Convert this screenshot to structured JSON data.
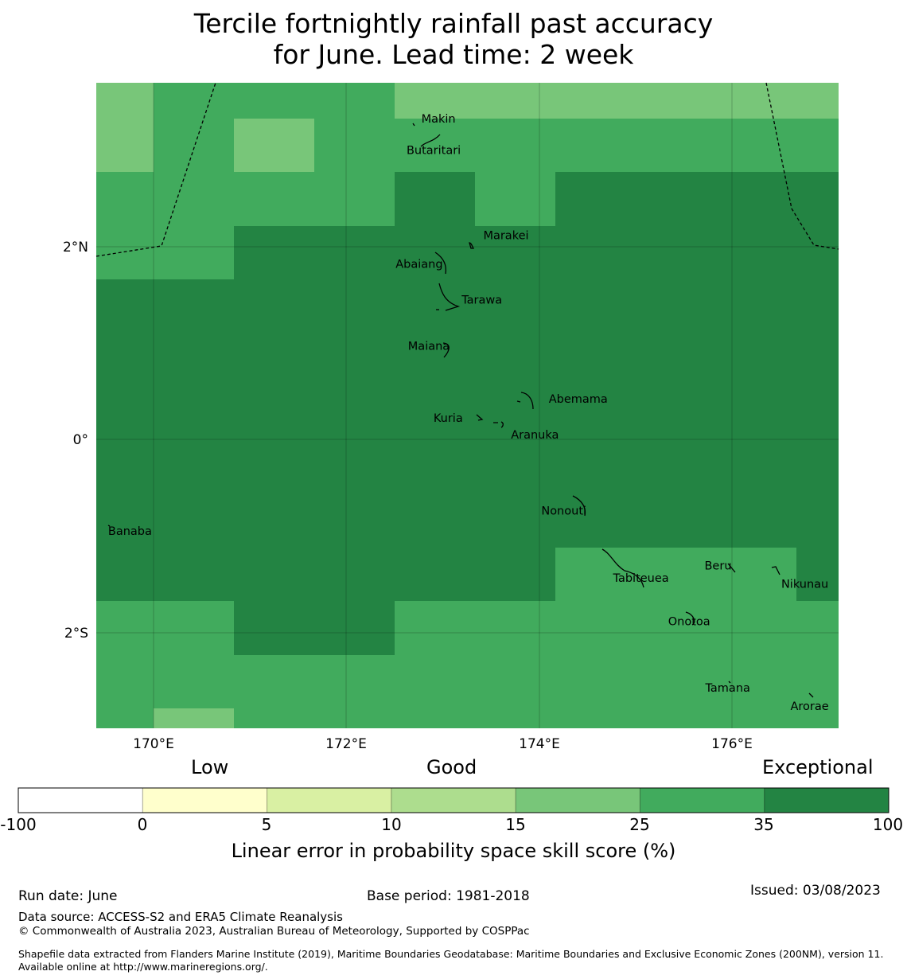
{
  "title": {
    "line1": "Tercile fortnightly rainfall past accuracy",
    "line2": "for June. Lead time: 2 week"
  },
  "map": {
    "lon_range": [
      169.4,
      177.1
    ],
    "lat_range": [
      -3.0,
      3.7
    ],
    "lon_ticks": [
      "170°E",
      "172°E",
      "174°E",
      "176°E"
    ],
    "lat_ticks": [
      "2°N",
      "0°",
      "2°S"
    ],
    "places": [
      {
        "name": "Makin",
        "lon": 172.95,
        "lat": 3.33
      },
      {
        "name": "Butaritari",
        "lon": 172.9,
        "lat": 3.0
      },
      {
        "name": "Marakei",
        "lon": 173.65,
        "lat": 2.12
      },
      {
        "name": "Abaiang",
        "lon": 172.75,
        "lat": 1.82
      },
      {
        "name": "Tarawa",
        "lon": 173.4,
        "lat": 1.45
      },
      {
        "name": "Maiana",
        "lon": 172.85,
        "lat": 0.97
      },
      {
        "name": "Abemama",
        "lon": 174.4,
        "lat": 0.42
      },
      {
        "name": "Kuria",
        "lon": 173.05,
        "lat": 0.22
      },
      {
        "name": "Aranuka",
        "lon": 173.95,
        "lat": 0.05
      },
      {
        "name": "Banaba",
        "lon": 169.75,
        "lat": -0.95
      },
      {
        "name": "Nonouti",
        "lon": 174.25,
        "lat": -0.74
      },
      {
        "name": "Tabiteuea",
        "lon": 175.05,
        "lat": -1.44
      },
      {
        "name": "Beru",
        "lon": 175.85,
        "lat": -1.31
      },
      {
        "name": "Nikunau",
        "lon": 176.75,
        "lat": -1.5
      },
      {
        "name": "Onotoa",
        "lon": 175.55,
        "lat": -1.89
      },
      {
        "name": "Tamana",
        "lon": 175.95,
        "lat": -2.58
      },
      {
        "name": "Arorae",
        "lon": 176.8,
        "lat": -2.77
      }
    ]
  },
  "colorbar": {
    "categories": [
      "Low",
      "Good",
      "Exceptional"
    ],
    "ticks": [
      "-100",
      "0",
      "5",
      "10",
      "15",
      "25",
      "35",
      "100"
    ],
    "colors": [
      "#ffffff",
      "#ffffcc",
      "#d9f0a3",
      "#addd8e",
      "#78c679",
      "#41ab5d",
      "#238443"
    ],
    "title": "Linear error in probability space skill score (%)"
  },
  "footer": {
    "run_date": "Run date: June",
    "base_period": "Base period: 1981-2018",
    "issued": "Issued: 03/08/2023",
    "data_source": "Data source: ACCESS-S2 and ERA5 Climate Reanalysis",
    "copyright": "© Commonwealth of Australia 2023, Australian Bureau of Meteorology, Supported by COSPPac",
    "shapefile": "Shapefile data extracted from Flanders Marine Institute (2019), Maritime Boundaries Geodatabase: Maritime Boundaries and Exclusive Economic Zones (200NM), version 11. Available online at http://www.marineregions.org/."
  }
}
